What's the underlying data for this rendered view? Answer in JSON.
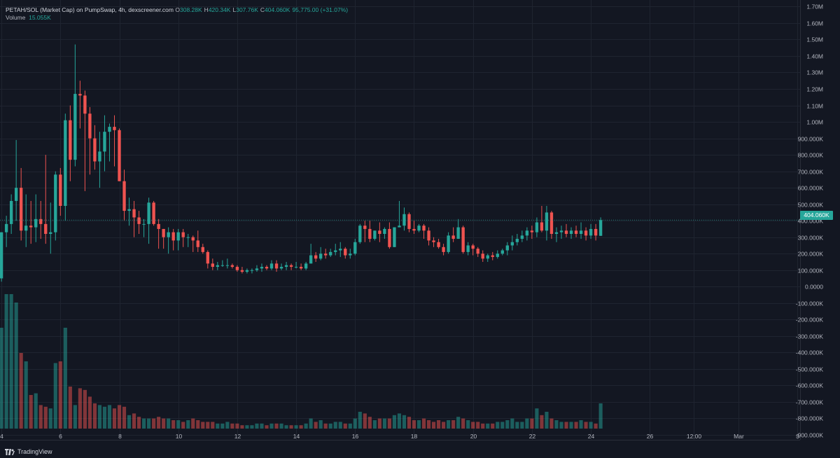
{
  "legend": {
    "symbol": "PETAH/SOL (Market Cap) on PumpSwap, 4h, dexscreener.com",
    "open_label": "O",
    "open": "308.28K",
    "high_label": "H",
    "high": "420.34K",
    "low_label": "L",
    "low": "307.76K",
    "close_label": "C",
    "close": "404.060K",
    "change": "95,775.00 (+31.07%)",
    "volume_label": "Volume",
    "volume_value": "15.055K"
  },
  "price_tag": "404.060K",
  "brand": "TradingView",
  "colors": {
    "background": "#131722",
    "up": "#26a69a",
    "down": "#ef5350",
    "grid": "#1f2430",
    "text": "#b2b5be"
  },
  "icons": {
    "brand": "tradingview-logo-icon"
  },
  "chart_data": {
    "type": "candlestick",
    "interval": "4h",
    "y_ticks": [
      "1.70M",
      "1.60M",
      "1.50M",
      "1.40M",
      "1.30M",
      "1.20M",
      "1.10M",
      "1.00M",
      "900.000K",
      "800.000K",
      "700.000K",
      "600.000K",
      "500.000K",
      "400.000K",
      "300.000K",
      "200.000K",
      "100.000K",
      "0.0000",
      "-100.000K",
      "-200.000K",
      "-300.000K",
      "-400.000K",
      "-500.000K",
      "-600.000K",
      "-700.000K",
      "-800.000K",
      "-900.000K"
    ],
    "y_tick_values": [
      1700000,
      1600000,
      1500000,
      1400000,
      1300000,
      1200000,
      1100000,
      1000000,
      900000,
      800000,
      700000,
      600000,
      500000,
      400000,
      300000,
      200000,
      100000,
      0,
      -100000,
      -200000,
      -300000,
      -400000,
      -500000,
      -600000,
      -700000,
      -800000,
      -900000
    ],
    "ylim": [
      -930000,
      1740000
    ],
    "x_ticks": [
      "4",
      "6",
      "8",
      "10",
      "12",
      "14",
      "16",
      "18",
      "20",
      "22",
      "24",
      "26",
      "12:00",
      "Mar",
      "3"
    ],
    "x_tick_days": [
      4,
      6,
      8,
      10,
      12,
      14,
      16,
      18,
      20,
      22,
      24,
      26,
      27.5,
      29,
      31
    ],
    "xlim_days": [
      3.95,
      31.1
    ],
    "last_price": 404060,
    "candles": [
      [
        50000,
        330000,
        30000,
        330000,
        60
      ],
      [
        330000,
        430000,
        240000,
        380000,
        80
      ],
      [
        380000,
        560000,
        320000,
        520000,
        80
      ],
      [
        520000,
        890000,
        400000,
        600000,
        75
      ],
      [
        600000,
        720000,
        280000,
        340000,
        45
      ],
      [
        340000,
        560000,
        240000,
        370000,
        40
      ],
      [
        370000,
        520000,
        260000,
        360000,
        20
      ],
      [
        360000,
        560000,
        270000,
        410000,
        21
      ],
      [
        410000,
        520000,
        290000,
        380000,
        14
      ],
      [
        380000,
        800000,
        260000,
        320000,
        13
      ],
      [
        320000,
        510000,
        200000,
        330000,
        12
      ],
      [
        330000,
        700000,
        280000,
        680000,
        39
      ],
      [
        680000,
        720000,
        430000,
        490000,
        40
      ],
      [
        490000,
        1050000,
        400000,
        1010000,
        60
      ],
      [
        1010000,
        1100000,
        640000,
        770000,
        25
      ],
      [
        770000,
        1470000,
        730000,
        1170000,
        14
      ],
      [
        1170000,
        1250000,
        960000,
        1160000,
        24
      ],
      [
        1160000,
        1190000,
        580000,
        1050000,
        23
      ],
      [
        1050000,
        1090000,
        680000,
        900000,
        19
      ],
      [
        900000,
        980000,
        710000,
        760000,
        15
      ],
      [
        760000,
        940000,
        600000,
        820000,
        14
      ],
      [
        820000,
        1040000,
        700000,
        940000,
        13
      ],
      [
        940000,
        990000,
        760000,
        970000,
        14
      ],
      [
        970000,
        1040000,
        730000,
        950000,
        12
      ],
      [
        950000,
        960000,
        640000,
        640000,
        14
      ],
      [
        640000,
        710000,
        400000,
        460000,
        13
      ],
      [
        460000,
        540000,
        370000,
        470000,
        8
      ],
      [
        470000,
        520000,
        300000,
        420000,
        9
      ],
      [
        420000,
        460000,
        320000,
        380000,
        7
      ],
      [
        380000,
        410000,
        300000,
        380000,
        6
      ],
      [
        380000,
        540000,
        260000,
        510000,
        6
      ],
      [
        510000,
        520000,
        370000,
        380000,
        6
      ],
      [
        380000,
        410000,
        230000,
        350000,
        7
      ],
      [
        350000,
        350000,
        230000,
        300000,
        6
      ],
      [
        300000,
        360000,
        200000,
        330000,
        6
      ],
      [
        330000,
        350000,
        220000,
        280000,
        5
      ],
      [
        280000,
        350000,
        220000,
        330000,
        5
      ],
      [
        330000,
        350000,
        240000,
        300000,
        4
      ],
      [
        300000,
        320000,
        240000,
        300000,
        5
      ],
      [
        300000,
        310000,
        210000,
        280000,
        6
      ],
      [
        280000,
        340000,
        210000,
        240000,
        5
      ],
      [
        240000,
        260000,
        200000,
        210000,
        4
      ],
      [
        210000,
        220000,
        110000,
        140000,
        4
      ],
      [
        140000,
        170000,
        100000,
        120000,
        4
      ],
      [
        120000,
        150000,
        100000,
        130000,
        3
      ],
      [
        130000,
        160000,
        120000,
        130000,
        3
      ],
      [
        130000,
        170000,
        110000,
        130000,
        4
      ],
      [
        130000,
        140000,
        110000,
        120000,
        3
      ],
      [
        120000,
        130000,
        90000,
        100000,
        3
      ],
      [
        100000,
        120000,
        80000,
        90000,
        2
      ],
      [
        90000,
        110000,
        80000,
        100000,
        2
      ],
      [
        100000,
        110000,
        80000,
        100000,
        2
      ],
      [
        100000,
        130000,
        90000,
        110000,
        3
      ],
      [
        110000,
        140000,
        90000,
        120000,
        3
      ],
      [
        120000,
        130000,
        100000,
        110000,
        2
      ],
      [
        110000,
        160000,
        100000,
        140000,
        3
      ],
      [
        140000,
        160000,
        90000,
        110000,
        3
      ],
      [
        110000,
        140000,
        100000,
        120000,
        3
      ],
      [
        120000,
        150000,
        100000,
        130000,
        2
      ],
      [
        130000,
        140000,
        100000,
        120000,
        2
      ],
      [
        120000,
        150000,
        110000,
        120000,
        2
      ],
      [
        120000,
        140000,
        100000,
        110000,
        2
      ],
      [
        110000,
        150000,
        100000,
        140000,
        3
      ],
      [
        140000,
        260000,
        140000,
        190000,
        6
      ],
      [
        190000,
        210000,
        150000,
        170000,
        4
      ],
      [
        170000,
        240000,
        160000,
        200000,
        5
      ],
      [
        200000,
        230000,
        170000,
        190000,
        3
      ],
      [
        190000,
        230000,
        180000,
        210000,
        3
      ],
      [
        210000,
        260000,
        190000,
        220000,
        4
      ],
      [
        220000,
        270000,
        180000,
        230000,
        4
      ],
      [
        230000,
        240000,
        170000,
        190000,
        3
      ],
      [
        190000,
        230000,
        170000,
        200000,
        3
      ],
      [
        200000,
        290000,
        190000,
        270000,
        6
      ],
      [
        270000,
        380000,
        260000,
        370000,
        10
      ],
      [
        370000,
        400000,
        270000,
        350000,
        9
      ],
      [
        350000,
        400000,
        270000,
        290000,
        7
      ],
      [
        290000,
        340000,
        280000,
        340000,
        5
      ],
      [
        340000,
        390000,
        270000,
        320000,
        6
      ],
      [
        320000,
        360000,
        290000,
        350000,
        6
      ],
      [
        350000,
        390000,
        230000,
        240000,
        6
      ],
      [
        240000,
        360000,
        240000,
        360000,
        8
      ],
      [
        360000,
        520000,
        360000,
        370000,
        9
      ],
      [
        370000,
        480000,
        340000,
        440000,
        8
      ],
      [
        440000,
        450000,
        330000,
        350000,
        7
      ],
      [
        350000,
        400000,
        320000,
        340000,
        5
      ],
      [
        340000,
        380000,
        330000,
        370000,
        5
      ],
      [
        370000,
        380000,
        290000,
        340000,
        6
      ],
      [
        340000,
        360000,
        250000,
        280000,
        5
      ],
      [
        280000,
        300000,
        240000,
        270000,
        4
      ],
      [
        270000,
        290000,
        230000,
        240000,
        5
      ],
      [
        240000,
        260000,
        190000,
        210000,
        4
      ],
      [
        210000,
        330000,
        200000,
        310000,
        5
      ],
      [
        310000,
        360000,
        270000,
        290000,
        5
      ],
      [
        290000,
        410000,
        290000,
        360000,
        7
      ],
      [
        360000,
        370000,
        200000,
        210000,
        6
      ],
      [
        210000,
        270000,
        190000,
        250000,
        5
      ],
      [
        250000,
        260000,
        190000,
        230000,
        4
      ],
      [
        230000,
        240000,
        180000,
        200000,
        4
      ],
      [
        200000,
        220000,
        150000,
        170000,
        3
      ],
      [
        170000,
        200000,
        150000,
        190000,
        3
      ],
      [
        190000,
        210000,
        160000,
        180000,
        3
      ],
      [
        180000,
        220000,
        170000,
        200000,
        4
      ],
      [
        200000,
        230000,
        190000,
        220000,
        4
      ],
      [
        220000,
        270000,
        190000,
        250000,
        5
      ],
      [
        250000,
        310000,
        220000,
        270000,
        6
      ],
      [
        270000,
        320000,
        250000,
        290000,
        4
      ],
      [
        290000,
        340000,
        270000,
        310000,
        4
      ],
      [
        310000,
        360000,
        280000,
        340000,
        6
      ],
      [
        340000,
        370000,
        290000,
        330000,
        6
      ],
      [
        330000,
        420000,
        300000,
        390000,
        12
      ],
      [
        390000,
        490000,
        330000,
        340000,
        8
      ],
      [
        340000,
        490000,
        280000,
        450000,
        10
      ],
      [
        450000,
        460000,
        290000,
        320000,
        6
      ],
      [
        320000,
        360000,
        270000,
        330000,
        5
      ],
      [
        330000,
        370000,
        290000,
        340000,
        4
      ],
      [
        340000,
        380000,
        300000,
        320000,
        4
      ],
      [
        320000,
        360000,
        290000,
        340000,
        4
      ],
      [
        340000,
        370000,
        300000,
        320000,
        4
      ],
      [
        320000,
        390000,
        290000,
        340000,
        5
      ],
      [
        340000,
        360000,
        280000,
        310000,
        4
      ],
      [
        310000,
        380000,
        290000,
        350000,
        4
      ],
      [
        350000,
        380000,
        280000,
        310000,
        3
      ],
      [
        308280,
        420340,
        307760,
        404060,
        15
      ]
    ]
  }
}
